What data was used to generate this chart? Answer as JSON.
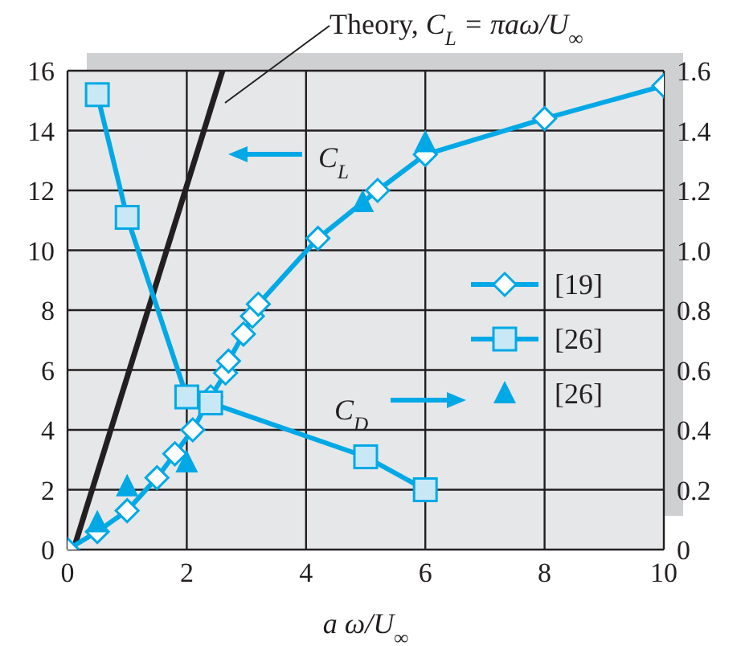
{
  "chart_data": {
    "type": "line",
    "xlabel": "a ω/U$_{∞}$",
    "annotations": [
      "Theory, C$_{L}$ = πaω/U$_{∞}$",
      "C$_{L}$",
      "C$_{D}$"
    ],
    "series": [
      {
        "color": "#231f20",
        "marker": "none",
        "x": [
          0.1,
          2.6
        ],
        "values": [
          0,
          16
        ]
      },
      {
        "name": "[19]",
        "color": "#00a9e6",
        "marker": "diamond",
        "x": [
          0,
          0.5,
          1,
          1.5,
          1.8,
          2.1,
          2.4,
          2.65,
          2.7,
          2.95,
          3.1,
          3.2,
          4.2,
          5.2,
          6,
          8,
          10
        ],
        "values": [
          0,
          0.6,
          1.3,
          2.4,
          3.2,
          4,
          5.1,
          5.9,
          6.3,
          7.2,
          7.8,
          8.2,
          10.4,
          12,
          13.2,
          14.4,
          15.5
        ]
      },
      {
        "name": "[26]",
        "color": "#00a9e6",
        "marker": "square",
        "axis": "y2",
        "x": [
          0.5,
          1,
          2,
          2.4,
          5,
          6
        ],
        "values": [
          1.52,
          1.11,
          0.51,
          0.49,
          0.31,
          0.2
        ]
      },
      {
        "name": "[26]",
        "type": "scatter",
        "color": "#00a9e6",
        "marker": "triangle",
        "x": [
          0.5,
          1,
          2,
          4.95,
          6
        ],
        "values": [
          0.9,
          2.1,
          2.9,
          11.6,
          13.6
        ]
      }
    ],
    "xlim": [
      0,
      10
    ],
    "xticks": [
      0,
      2,
      4,
      6,
      8,
      10
    ],
    "ylim": [
      0,
      16
    ],
    "yticks": [
      0,
      2,
      4,
      6,
      8,
      10,
      12,
      14,
      16
    ],
    "y2lim": [
      0,
      1.6
    ],
    "y2ticks": [
      0,
      0.2,
      0.4,
      0.6,
      0.8,
      {
        "value": 1,
        "label": "1.0"
      },
      1.2,
      1.4,
      1.6
    ],
    "grid": true,
    "legend": "right"
  }
}
